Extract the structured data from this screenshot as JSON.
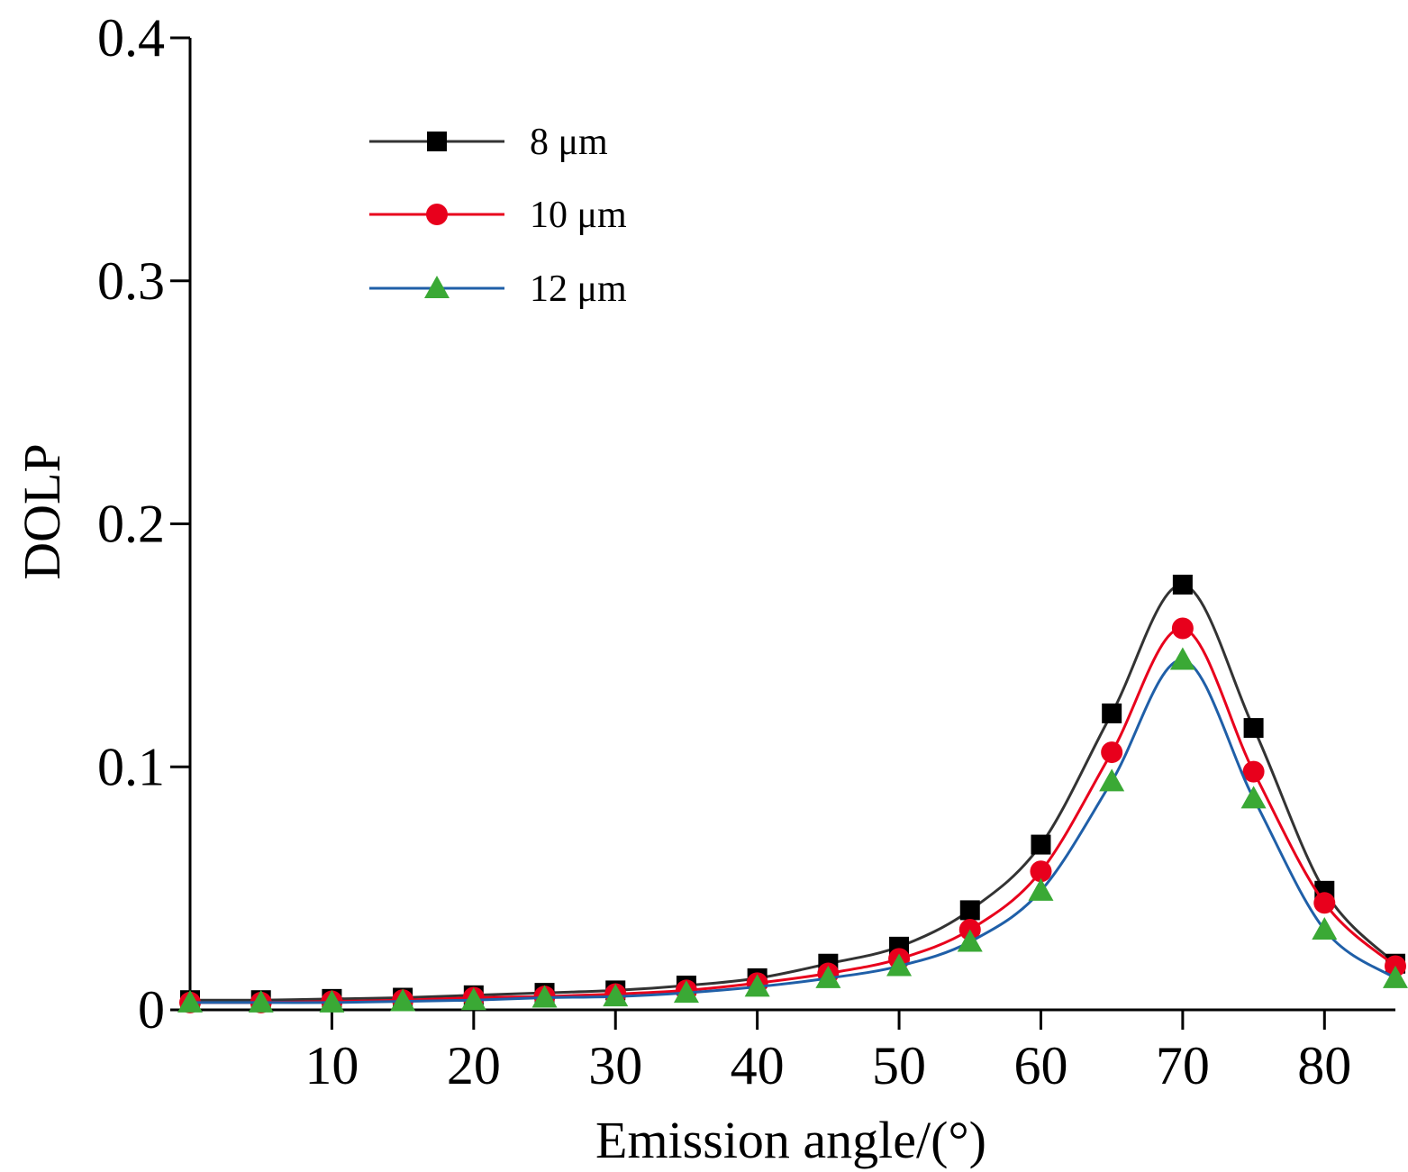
{
  "chart_data": {
    "type": "line",
    "title": "",
    "xlabel": "Emission angle/(°)",
    "ylabel": "DOLP",
    "xlim": [
      0,
      85
    ],
    "ylim": [
      0,
      0.4
    ],
    "x_ticks": [
      10,
      20,
      30,
      40,
      50,
      60,
      70,
      80
    ],
    "x_tick_labels": [
      "10",
      "20",
      "30",
      "40",
      "50",
      "60",
      "70",
      "80"
    ],
    "y_ticks": [
      0,
      0.1,
      0.2,
      0.3,
      0.4
    ],
    "y_tick_labels": [
      "0",
      "0.1",
      "0.2",
      "0.3",
      "0.4"
    ],
    "legend_position": "top-left",
    "grid": false,
    "x": [
      0,
      5,
      10,
      15,
      20,
      25,
      30,
      35,
      40,
      45,
      50,
      55,
      60,
      65,
      70,
      75,
      80,
      85
    ],
    "series": [
      {
        "name": "8 μm",
        "color": "#333333",
        "marker_color": "#000000",
        "marker": "square",
        "values": [
          0.004,
          0.004,
          0.0045,
          0.005,
          0.006,
          0.007,
          0.008,
          0.01,
          0.013,
          0.019,
          0.026,
          0.041,
          0.068,
          0.122,
          0.175,
          0.116,
          0.049,
          0.019
        ]
      },
      {
        "name": "10 μm",
        "color": "#e8001c",
        "marker_color": "#e8001c",
        "marker": "circle",
        "values": [
          0.003,
          0.003,
          0.0035,
          0.004,
          0.005,
          0.0055,
          0.0065,
          0.008,
          0.011,
          0.015,
          0.021,
          0.033,
          0.057,
          0.106,
          0.157,
          0.098,
          0.044,
          0.018
        ]
      },
      {
        "name": "12 μm",
        "color": "#1f5fa8",
        "marker_color": "#3aa935",
        "marker": "triangle",
        "values": [
          0.003,
          0.003,
          0.003,
          0.0035,
          0.004,
          0.005,
          0.0055,
          0.007,
          0.0095,
          0.013,
          0.018,
          0.028,
          0.049,
          0.094,
          0.144,
          0.087,
          0.033,
          0.013
        ]
      }
    ]
  }
}
